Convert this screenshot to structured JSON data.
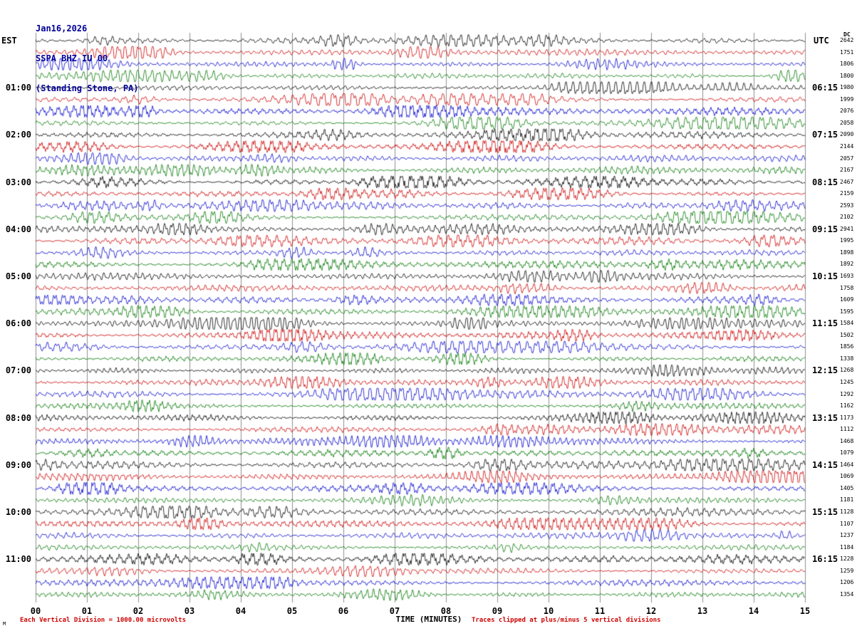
{
  "header": {
    "date": "Jan16,2026",
    "station": "SSPA BHZ IU 00",
    "location": "(Standing Stone, PA)"
  },
  "axes": {
    "left_tz": "EST",
    "right_tz": "UTC",
    "dc_header": "DC",
    "xlabel": "TIME (MINUTES)",
    "x_ticks": [
      "00",
      "01",
      "02",
      "03",
      "04",
      "05",
      "06",
      "07",
      "08",
      "09",
      "10",
      "11",
      "12",
      "13",
      "14",
      "15"
    ]
  },
  "footer": {
    "left_note": "Each Vertical Division = 1000.00 microvolts",
    "right_note": "Traces clipped at plus/minus 5 vertical divisions",
    "corner_mark": "M"
  },
  "chart_data": {
    "type": "line",
    "subtype": "helicorder-seismogram",
    "title": "SSPA BHZ IU 00 (Standing Stone, PA) Jan16,2026",
    "xlabel": "TIME (MINUTES)",
    "x_range_minutes": [
      0,
      15
    ],
    "minutes_per_row": 15,
    "rows": 48,
    "rows_per_hour": 4,
    "grid": true,
    "noise_seed": 1337,
    "vertical_division_microvolts": 1000.0,
    "clip_divisions": 5,
    "trace_color_cycle": [
      "#000000",
      "#cc0000",
      "#0000cc",
      "#007700"
    ],
    "left_time_labels": [
      {
        "row": 4,
        "label": "01:00"
      },
      {
        "row": 8,
        "label": "02:00"
      },
      {
        "row": 12,
        "label": "03:00"
      },
      {
        "row": 16,
        "label": "04:00"
      },
      {
        "row": 20,
        "label": "05:00"
      },
      {
        "row": 24,
        "label": "06:00"
      },
      {
        "row": 28,
        "label": "07:00"
      },
      {
        "row": 32,
        "label": "08:00"
      },
      {
        "row": 36,
        "label": "09:00"
      },
      {
        "row": 40,
        "label": "10:00"
      },
      {
        "row": 44,
        "label": "11:00"
      }
    ],
    "right_time_labels": [
      {
        "row": 4,
        "label": "06:15"
      },
      {
        "row": 8,
        "label": "07:15"
      },
      {
        "row": 12,
        "label": "08:15"
      },
      {
        "row": 16,
        "label": "09:15"
      },
      {
        "row": 20,
        "label": "10:15"
      },
      {
        "row": 24,
        "label": "11:15"
      },
      {
        "row": 28,
        "label": "12:15"
      },
      {
        "row": 32,
        "label": "13:15"
      },
      {
        "row": 36,
        "label": "14:15"
      },
      {
        "row": 40,
        "label": "15:15"
      },
      {
        "row": 44,
        "label": "16:15"
      }
    ],
    "dc_values": [
      2642,
      1751,
      1806,
      1800,
      1980,
      1999,
      2076,
      2058,
      2090,
      2144,
      2057,
      2167,
      2467,
      2159,
      2593,
      2102,
      2941,
      1995,
      1898,
      1892,
      1693,
      1758,
      1609,
      1595,
      1584,
      1502,
      1856,
      1338,
      1268,
      1245,
      1292,
      1162,
      1173,
      1112,
      1468,
      1079,
      1464,
      1069,
      1405,
      1181,
      1128,
      1107,
      1237,
      1184,
      1228,
      1259,
      1206,
      1354
    ]
  }
}
